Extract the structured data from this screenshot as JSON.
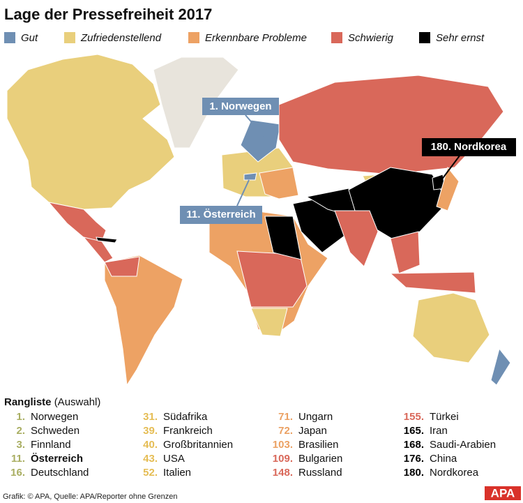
{
  "title": "Lage der Pressefreiheit 2017",
  "legend": [
    {
      "label": "Gut",
      "color": "#6f8fb3"
    },
    {
      "label": "Zufriedenstellend",
      "color": "#e9cf7c"
    },
    {
      "label": "Erkennbare Probleme",
      "color": "#eda264"
    },
    {
      "label": "Schwierig",
      "color": "#d9685a"
    },
    {
      "label": "Sehr ernst",
      "color": "#000000"
    }
  ],
  "callouts": [
    "1. Norwegen",
    "11. Österreich",
    "180. Nordkorea"
  ],
  "ranking": {
    "heading": "Rangliste",
    "subheading": "(Auswahl)",
    "columns": [
      {
        "color": "#a9ae62",
        "entries": [
          {
            "rank": "1.",
            "name": "Norwegen"
          },
          {
            "rank": "2.",
            "name": "Schweden"
          },
          {
            "rank": "3.",
            "name": "Finnland"
          },
          {
            "rank": "11.",
            "name": "Österreich",
            "bold": true
          },
          {
            "rank": "16.",
            "name": "Deutschland"
          }
        ]
      },
      {
        "color": "#e5bd55",
        "entries": [
          {
            "rank": "31.",
            "name": "Südafrika"
          },
          {
            "rank": "39.",
            "name": "Frankreich"
          },
          {
            "rank": "40.",
            "name": "Großbritannien"
          },
          {
            "rank": "43.",
            "name": "USA"
          },
          {
            "rank": "52.",
            "name": "Italien"
          }
        ]
      },
      {
        "color": "#eba163",
        "entries": [
          {
            "rank": "71.",
            "name": "Ungarn"
          },
          {
            "rank": "72.",
            "name": "Japan"
          },
          {
            "rank": "103.",
            "name": "Brasilien"
          },
          {
            "rank": "109.",
            "name": "Bulgarien",
            "color": "#d9685a"
          },
          {
            "rank": "148.",
            "name": "Russland",
            "color": "#d9685a"
          }
        ]
      },
      {
        "color": "#000000",
        "entries": [
          {
            "rank": "155.",
            "name": "Türkei",
            "color": "#d9685a"
          },
          {
            "rank": "165.",
            "name": "Iran"
          },
          {
            "rank": "168.",
            "name": "Saudi-Arabien"
          },
          {
            "rank": "176.",
            "name": "China"
          },
          {
            "rank": "180.",
            "name": "Nordkorea"
          }
        ]
      }
    ]
  },
  "footer": {
    "source": "Grafik: © APA, Quelle: APA/Reporter ohne Grenzen",
    "logo": "APA"
  }
}
